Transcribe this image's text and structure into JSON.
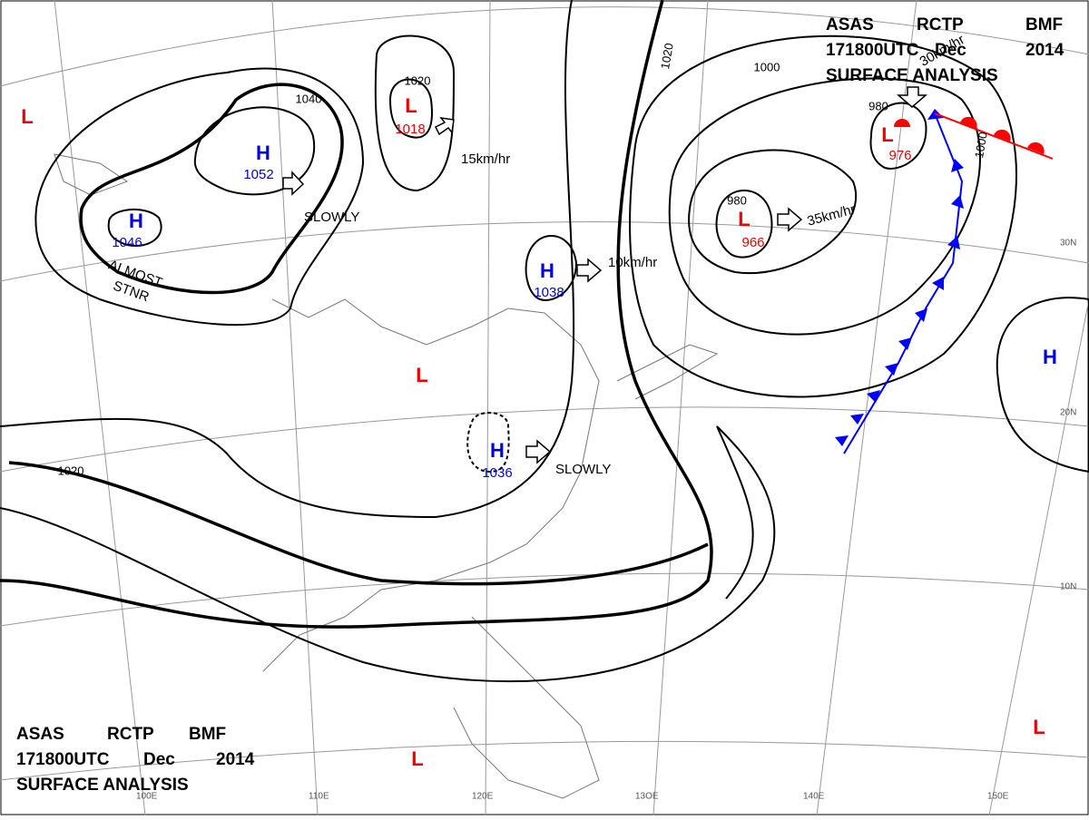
{
  "header": {
    "agency": "ASAS",
    "station": "RCTP",
    "code": "BMF",
    "time": "171800UTC",
    "month": "Dec",
    "year": "2014",
    "title": "SURFACE ANALYSIS"
  },
  "centers": [
    {
      "type": "H",
      "value": "1052"
    },
    {
      "type": "L",
      "value": "1018"
    },
    {
      "type": "H",
      "value": "1046"
    },
    {
      "type": "L"
    },
    {
      "type": "H",
      "value": "1038"
    },
    {
      "type": "H",
      "value": "1036"
    },
    {
      "type": "L",
      "value": "966"
    },
    {
      "type": "L",
      "value": "976"
    },
    {
      "type": "H"
    },
    {
      "type": "L"
    },
    {
      "type": "L"
    },
    {
      "type": "L"
    }
  ],
  "isobar_labels": [
    "1040",
    "1020",
    "1020",
    "1000",
    "980",
    "980",
    "1000",
    "1020"
  ],
  "motions": [
    "15km/hr",
    "SLOWLY",
    "10km/hr",
    "35km/hr",
    "SLOWLY",
    "30km/hr",
    "ALMOST",
    "STNR"
  ],
  "lat_labels": [
    "30N",
    "20N",
    "10N"
  ],
  "lon_labels": [
    "100E",
    "110E",
    "120E",
    "13OE",
    "140E",
    "150E"
  ]
}
